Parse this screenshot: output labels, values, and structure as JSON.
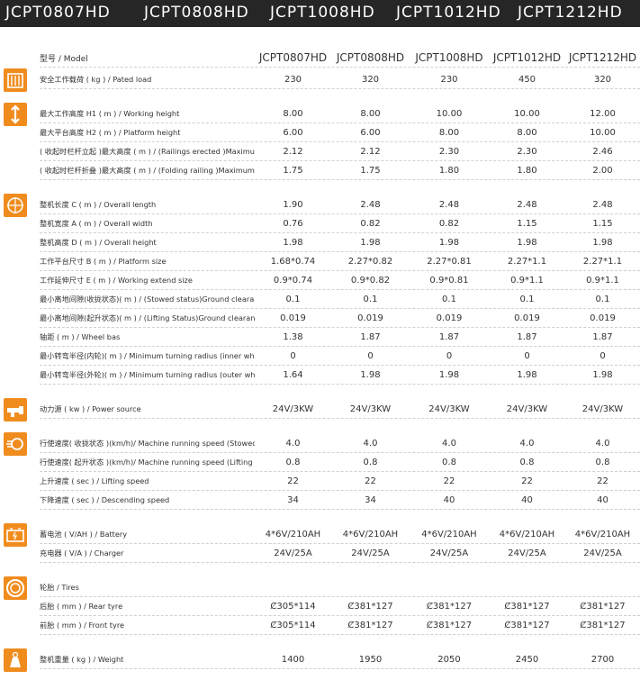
{
  "header": {
    "models": [
      "JCPT0807HD",
      "JCPT0808HD",
      "JCPT1008HD",
      "JCPT1012HD",
      "JCPT1212HD"
    ]
  },
  "table": {
    "columns": [
      "型号 / Model",
      "JCPT0807HD",
      "JCPT0808HD",
      "JCPT1008HD",
      "JCPT1012HD",
      "JCPT1212HD"
    ],
    "groups": [
      {
        "rows": [
          {
            "label": "安全工作载荷 ( kg ) / Pated load",
            "values": [
              "230",
              "320",
              "230",
              "450",
              "320"
            ]
          }
        ]
      },
      {
        "rows": [
          {
            "label": "最大工作高度 H1 ( m ) / Working height",
            "values": [
              "8.00",
              "8.00",
              "10.00",
              "10.00",
              "12.00"
            ]
          },
          {
            "label": "最大平台高度 H2 ( m ) / Platform height",
            "values": [
              "6.00",
              "6.00",
              "8.00",
              "8.00",
              "10.00"
            ]
          },
          {
            "label": "( 收起时栏杆立起 )最大高度 ( m ) / (Railings erected )Maximum height",
            "values": [
              "2.12",
              "2.12",
              "2.30",
              "2.30",
              "2.46"
            ]
          },
          {
            "label": "( 收起时栏杆折叠 )最大高度 ( m ) / (Folding railing )Maximum height",
            "values": [
              "1.75",
              "1.75",
              "1.80",
              "1.80",
              "2.00"
            ]
          }
        ]
      },
      {
        "rows": [
          {
            "label": "整机长度 C ( m ) / Overall length",
            "values": [
              "1.90",
              "2.48",
              "2.48",
              "2.48",
              "2.48"
            ]
          },
          {
            "label": "整机宽度 A ( m ) / Overall width",
            "values": [
              "0.76",
              "0.82",
              "0.82",
              "1.15",
              "1.15"
            ]
          },
          {
            "label": "整机高度 D ( m ) / Overall height",
            "values": [
              "1.98",
              "1.98",
              "1.98",
              "1.98",
              "1.98"
            ]
          },
          {
            "label": "工作平台尺寸 B ( m ) / Platform size",
            "values": [
              "1.68*0.74",
              "2.27*0.82",
              "2.27*0.81",
              "2.27*1.1",
              "2.27*1.1"
            ]
          },
          {
            "label": "工作延伸尺寸 E ( m ) / Working extend size",
            "values": [
              "0.9*0.74",
              "0.9*0.82",
              "0.9*0.81",
              "0.9*1.1",
              "0.9*1.1"
            ]
          },
          {
            "label": "最小离地间隙(收拢状态)( m ) / (Stowed status)Ground clearance",
            "values": [
              "0.1",
              "0.1",
              "0.1",
              "0.1",
              "0.1"
            ]
          },
          {
            "label": "最小离地间隙(起升状态)( m ) / (Lifting Status)Ground clearance",
            "values": [
              "0.019",
              "0.019",
              "0.019",
              "0.019",
              "0.019"
            ]
          },
          {
            "label": "轴距 ( m ) / Wheel bas",
            "values": [
              "1.38",
              "1.87",
              "1.87",
              "1.87",
              "1.87"
            ]
          },
          {
            "label": "最小转弯半径(内轮)( m ) / Minimum turning radius (inner wheel)",
            "values": [
              "0",
              "0",
              "0",
              "0",
              "0"
            ]
          },
          {
            "label": "最小转弯半径(外轮)( m ) / Minimum turning radius (outer wheel)",
            "values": [
              "1.64",
              "1.98",
              "1.98",
              "1.98",
              "1.98"
            ]
          }
        ]
      },
      {
        "rows": [
          {
            "label": "动力源 ( kw ) / Power source",
            "values": [
              "24V/3KW",
              "24V/3KW",
              "24V/3KW",
              "24V/3KW",
              "24V/3KW"
            ]
          }
        ]
      },
      {
        "rows": [
          {
            "label": "行使速度( 收拢状态 )(km/h)/ Machine running speed (Stowed status)",
            "values": [
              "4.0",
              "4.0",
              "4.0",
              "4.0",
              "4.0"
            ]
          },
          {
            "label": "行使速度( 起升状态 )(km/h)/ Machine running speed (Lifting Status)",
            "values": [
              "0.8",
              "0.8",
              "0.8",
              "0.8",
              "0.8"
            ]
          },
          {
            "label": "上升速度 ( sec ) / Lifting speed",
            "values": [
              "22",
              "22",
              "22",
              "22",
              "22"
            ]
          },
          {
            "label": "下降速度 ( sec ) / Descending speed",
            "values": [
              "34",
              "34",
              "40",
              "40",
              "40"
            ]
          }
        ]
      },
      {
        "rows": [
          {
            "label": "蓄电池 ( V/AH ) / Battery",
            "values": [
              "4*6V/210AH",
              "4*6V/210AH",
              "4*6V/210AH",
              "4*6V/210AH",
              "4*6V/210AH"
            ]
          },
          {
            "label": "充电器 ( V/A ) / Charger",
            "values": [
              "24V/25A",
              "24V/25A",
              "24V/25A",
              "24V/25A",
              "24V/25A"
            ]
          }
        ]
      },
      {
        "rows": [
          {
            "label": "轮胎 / Tires"
          },
          {
            "label": "后胎 ( mm ) / Rear tyre",
            "values": [
              "Ȼ305*114",
              "Ȼ381*127",
              "Ȼ381*127",
              "Ȼ381*127",
              "Ȼ381*127"
            ]
          },
          {
            "label": "前胎 ( mm ) / Front tyre",
            "values": [
              "Ȼ305*114",
              "Ȼ381*127",
              "Ȼ381*127",
              "Ȼ381*127",
              "Ȼ381*127"
            ]
          }
        ]
      },
      {
        "rows": [
          {
            "label": "整机重量 ( kg ) / Weight",
            "values": [
              "1400",
              "1950",
              "2050",
              "2450",
              "2700"
            ]
          }
        ]
      }
    ]
  }
}
